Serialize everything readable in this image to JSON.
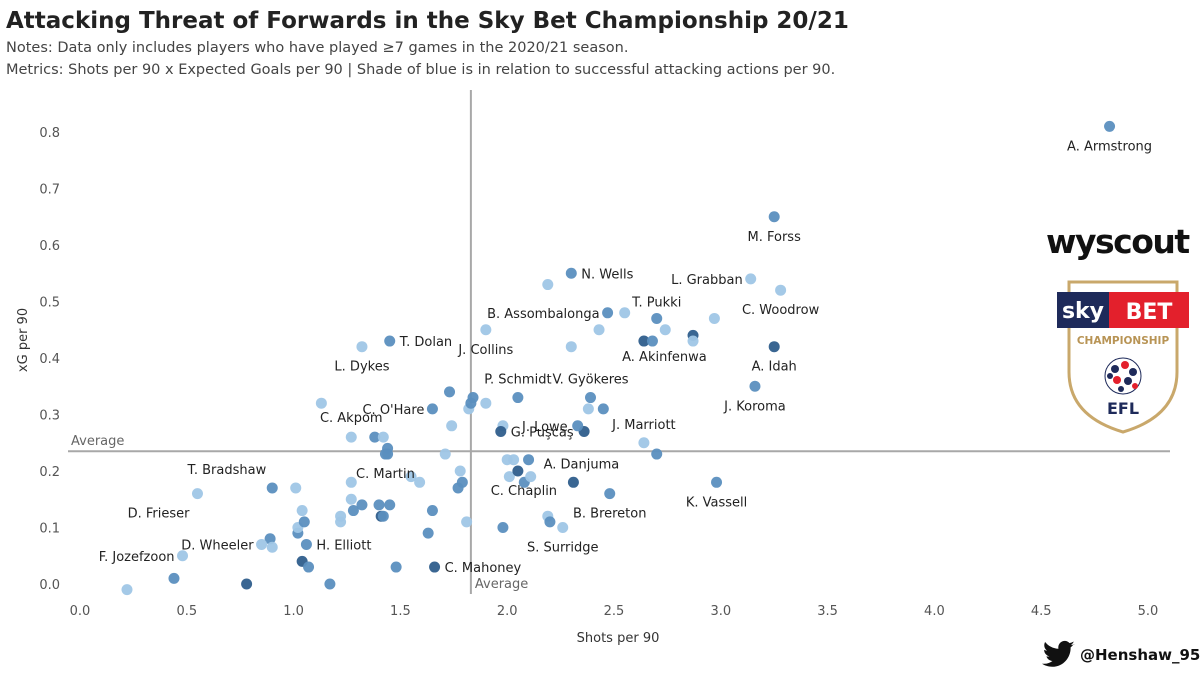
{
  "header": {
    "title": "Attacking Threat of Forwards in the Sky Bet Championship 20/21",
    "notes": "Notes: Data only includes players who have played ≥7 games in the 2020/21 season.",
    "metrics": "Metrics: Shots per 90 x Expected Goals per 90 | Shade of blue is in relation to successful attacking actions per 90."
  },
  "branding": {
    "wyscout": "wyscout",
    "skybet_sky": "sky",
    "skybet_bet": "BET",
    "championship": "CHAMPIONSHIP",
    "efl": "EFL",
    "twitter_handle": "@Henshaw_95"
  },
  "colors": {
    "dark": "#2f5e8c",
    "mid": "#5b8fbf",
    "light": "#9fc6e6",
    "avg_line": "#a8a8a8",
    "skybet_red": "#e3202c",
    "skybet_navy": "#1e2a5a"
  },
  "chart_data": {
    "type": "scatter",
    "title": "Attacking Threat of Forwards in the Sky Bet Championship 20/21",
    "xlabel": "Shots per 90",
    "ylabel": "xG per 90",
    "xlim": [
      -0.05,
      5.1
    ],
    "ylim": [
      -0.02,
      0.88
    ],
    "x_ticks": [
      "0.0",
      "0.5",
      "1.0",
      "1.5",
      "2.0",
      "2.5",
      "3.0",
      "3.5",
      "4.0",
      "4.5",
      "5.0"
    ],
    "y_ticks": [
      "0.0",
      "0.1",
      "0.2",
      "0.3",
      "0.4",
      "0.5",
      "0.6",
      "0.7",
      "0.8"
    ],
    "grid": false,
    "reference_lines": {
      "x_average": {
        "value": 1.83,
        "label": "Average"
      },
      "y_average": {
        "value": 0.235,
        "label": "Average"
      }
    },
    "labeled_points": [
      {
        "name": "A. Armstrong",
        "x": 4.82,
        "y": 0.81,
        "shade": "mid"
      },
      {
        "name": "M. Forss",
        "x": 3.25,
        "y": 0.65,
        "shade": "mid"
      },
      {
        "name": "N. Wells",
        "x": 2.3,
        "y": 0.55,
        "shade": "mid"
      },
      {
        "name": "L. Grabban",
        "x": 3.14,
        "y": 0.54,
        "shade": "light"
      },
      {
        "name": "C. Woodrow",
        "x": 3.28,
        "y": 0.52,
        "shade": "light"
      },
      {
        "name": "B. Assombalonga",
        "x": 2.47,
        "y": 0.48,
        "shade": "mid"
      },
      {
        "name": "T. Pukki",
        "x": 2.7,
        "y": 0.47,
        "shade": "mid"
      },
      {
        "name": "T. Dolan",
        "x": 1.45,
        "y": 0.43,
        "shade": "mid"
      },
      {
        "name": "J. Collins",
        "x": 1.9,
        "y": 0.45,
        "shade": "light"
      },
      {
        "name": "L. Dykes",
        "x": 1.32,
        "y": 0.42,
        "shade": "light"
      },
      {
        "name": "A. Akinfenwa",
        "x": 2.68,
        "y": 0.43,
        "shade": "mid"
      },
      {
        "name": "A. Idah",
        "x": 3.25,
        "y": 0.42,
        "shade": "dark"
      },
      {
        "name": "P. Schmidt",
        "x": 2.05,
        "y": 0.33,
        "shade": "mid"
      },
      {
        "name": "V. Gyökeres",
        "x": 2.39,
        "y": 0.33,
        "shade": "mid"
      },
      {
        "name": "J. Koroma",
        "x": 3.16,
        "y": 0.35,
        "shade": "mid"
      },
      {
        "name": "C. O'Hare",
        "x": 1.65,
        "y": 0.31,
        "shade": "mid"
      },
      {
        "name": "J. Lowe",
        "x": 2.33,
        "y": 0.28,
        "shade": "mid"
      },
      {
        "name": "C. Akpom",
        "x": 1.27,
        "y": 0.26,
        "shade": "light"
      },
      {
        "name": "J. Marriott",
        "x": 2.64,
        "y": 0.25,
        "shade": "light"
      },
      {
        "name": "G. Puşcaş",
        "x": 1.97,
        "y": 0.27,
        "shade": "dark"
      },
      {
        "name": "C. Martin",
        "x": 1.43,
        "y": 0.23,
        "shade": "mid"
      },
      {
        "name": "A. Danjuma",
        "x": 2.31,
        "y": 0.18,
        "shade": "dark"
      },
      {
        "name": "T. Bradshaw",
        "x": 0.9,
        "y": 0.17,
        "shade": "mid"
      },
      {
        "name": "C. Chaplin",
        "x": 2.05,
        "y": 0.2,
        "shade": "dark"
      },
      {
        "name": "K. Vassell",
        "x": 2.98,
        "y": 0.18,
        "shade": "mid"
      },
      {
        "name": "B. Brereton",
        "x": 2.48,
        "y": 0.16,
        "shade": "mid"
      },
      {
        "name": "D. Frieser",
        "x": 0.55,
        "y": 0.16,
        "shade": "light"
      },
      {
        "name": "S. Surridge",
        "x": 2.26,
        "y": 0.1,
        "shade": "light"
      },
      {
        "name": "D. Wheeler",
        "x": 0.85,
        "y": 0.07,
        "shade": "light"
      },
      {
        "name": "H. Elliott",
        "x": 1.06,
        "y": 0.07,
        "shade": "mid"
      },
      {
        "name": "F. Jozefzoon",
        "x": 0.48,
        "y": 0.05,
        "shade": "light"
      },
      {
        "name": "C. Mahoney",
        "x": 1.66,
        "y": 0.03,
        "shade": "dark"
      }
    ],
    "unlabeled_points": [
      {
        "x": 0.22,
        "y": -0.01,
        "shade": "light"
      },
      {
        "x": 0.44,
        "y": 0.01,
        "shade": "mid"
      },
      {
        "x": 0.78,
        "y": 0.0,
        "shade": "dark"
      },
      {
        "x": 1.17,
        "y": 0.0,
        "shade": "mid"
      },
      {
        "x": 1.04,
        "y": 0.04,
        "shade": "dark"
      },
      {
        "x": 1.07,
        "y": 0.03,
        "shade": "mid"
      },
      {
        "x": 1.48,
        "y": 0.03,
        "shade": "mid"
      },
      {
        "x": 0.89,
        "y": 0.08,
        "shade": "mid"
      },
      {
        "x": 0.9,
        "y": 0.065,
        "shade": "light"
      },
      {
        "x": 1.02,
        "y": 0.09,
        "shade": "mid"
      },
      {
        "x": 1.02,
        "y": 0.1,
        "shade": "light"
      },
      {
        "x": 1.05,
        "y": 0.11,
        "shade": "mid"
      },
      {
        "x": 1.04,
        "y": 0.13,
        "shade": "light"
      },
      {
        "x": 1.01,
        "y": 0.17,
        "shade": "light"
      },
      {
        "x": 1.22,
        "y": 0.11,
        "shade": "light"
      },
      {
        "x": 1.22,
        "y": 0.12,
        "shade": "light"
      },
      {
        "x": 1.27,
        "y": 0.15,
        "shade": "light"
      },
      {
        "x": 1.28,
        "y": 0.13,
        "shade": "mid"
      },
      {
        "x": 1.27,
        "y": 0.18,
        "shade": "light"
      },
      {
        "x": 1.32,
        "y": 0.14,
        "shade": "mid"
      },
      {
        "x": 1.4,
        "y": 0.14,
        "shade": "mid"
      },
      {
        "x": 1.41,
        "y": 0.12,
        "shade": "dark"
      },
      {
        "x": 1.42,
        "y": 0.12,
        "shade": "mid"
      },
      {
        "x": 1.45,
        "y": 0.14,
        "shade": "mid"
      },
      {
        "x": 1.55,
        "y": 0.19,
        "shade": "light"
      },
      {
        "x": 1.59,
        "y": 0.18,
        "shade": "light"
      },
      {
        "x": 1.65,
        "y": 0.13,
        "shade": "mid"
      },
      {
        "x": 1.63,
        "y": 0.09,
        "shade": "mid"
      },
      {
        "x": 1.81,
        "y": 0.11,
        "shade": "light"
      },
      {
        "x": 1.77,
        "y": 0.17,
        "shade": "mid"
      },
      {
        "x": 1.79,
        "y": 0.18,
        "shade": "mid"
      },
      {
        "x": 1.78,
        "y": 0.2,
        "shade": "light"
      },
      {
        "x": 1.71,
        "y": 0.23,
        "shade": "light"
      },
      {
        "x": 1.38,
        "y": 0.26,
        "shade": "mid"
      },
      {
        "x": 1.42,
        "y": 0.26,
        "shade": "light"
      },
      {
        "x": 1.44,
        "y": 0.24,
        "shade": "mid"
      },
      {
        "x": 1.44,
        "y": 0.23,
        "shade": "mid"
      },
      {
        "x": 1.13,
        "y": 0.32,
        "shade": "light"
      },
      {
        "x": 1.73,
        "y": 0.34,
        "shade": "mid"
      },
      {
        "x": 1.74,
        "y": 0.28,
        "shade": "light"
      },
      {
        "x": 1.82,
        "y": 0.31,
        "shade": "light"
      },
      {
        "x": 1.83,
        "y": 0.32,
        "shade": "mid"
      },
      {
        "x": 1.84,
        "y": 0.33,
        "shade": "mid"
      },
      {
        "x": 1.9,
        "y": 0.32,
        "shade": "light"
      },
      {
        "x": 1.98,
        "y": 0.28,
        "shade": "light"
      },
      {
        "x": 2.0,
        "y": 0.22,
        "shade": "light"
      },
      {
        "x": 2.01,
        "y": 0.19,
        "shade": "light"
      },
      {
        "x": 2.03,
        "y": 0.22,
        "shade": "light"
      },
      {
        "x": 2.08,
        "y": 0.18,
        "shade": "mid"
      },
      {
        "x": 2.1,
        "y": 0.22,
        "shade": "mid"
      },
      {
        "x": 2.11,
        "y": 0.19,
        "shade": "light"
      },
      {
        "x": 1.98,
        "y": 0.1,
        "shade": "mid"
      },
      {
        "x": 2.19,
        "y": 0.12,
        "shade": "light"
      },
      {
        "x": 2.2,
        "y": 0.11,
        "shade": "mid"
      },
      {
        "x": 2.19,
        "y": 0.53,
        "shade": "light"
      },
      {
        "x": 2.3,
        "y": 0.42,
        "shade": "light"
      },
      {
        "x": 2.43,
        "y": 0.45,
        "shade": "light"
      },
      {
        "x": 2.55,
        "y": 0.48,
        "shade": "light"
      },
      {
        "x": 2.74,
        "y": 0.45,
        "shade": "light"
      },
      {
        "x": 2.64,
        "y": 0.43,
        "shade": "dark"
      },
      {
        "x": 2.87,
        "y": 0.44,
        "shade": "dark"
      },
      {
        "x": 2.87,
        "y": 0.43,
        "shade": "light"
      },
      {
        "x": 2.97,
        "y": 0.47,
        "shade": "light"
      },
      {
        "x": 2.38,
        "y": 0.31,
        "shade": "light"
      },
      {
        "x": 2.45,
        "y": 0.31,
        "shade": "mid"
      },
      {
        "x": 2.36,
        "y": 0.27,
        "shade": "dark"
      },
      {
        "x": 2.7,
        "y": 0.23,
        "shade": "mid"
      }
    ]
  }
}
